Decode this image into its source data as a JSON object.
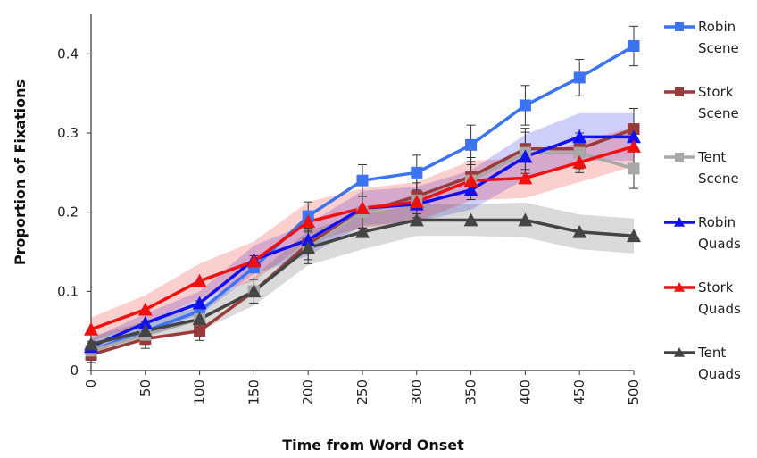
{
  "chart_data": {
    "type": "line",
    "title": "",
    "xlabel": "Time from Word Onset",
    "ylabel": "Proportion of Fixations",
    "x": [
      0,
      50,
      100,
      150,
      200,
      250,
      300,
      350,
      400,
      450,
      500
    ],
    "x_tick_labels": [
      "0",
      "50",
      "100",
      "150",
      "200",
      "250",
      "300",
      "350",
      "400",
      "450",
      "500"
    ],
    "y_ticks": [
      0,
      0.1,
      0.2,
      0.3,
      0.4
    ],
    "y_tick_labels": [
      "0",
      "0.1",
      "0.2",
      "0.3",
      "0.4"
    ],
    "ylim": [
      0,
      0.45
    ],
    "xlim": [
      0,
      500
    ],
    "grid": false,
    "legend_position": "right",
    "series": [
      {
        "name_lines": [
          "Robin",
          "Scene"
        ],
        "color": "#3b73f0",
        "marker": "square",
        "values": [
          0.025,
          0.05,
          0.075,
          0.13,
          0.195,
          0.24,
          0.25,
          0.285,
          0.335,
          0.37,
          0.41
        ],
        "error": [
          0.012,
          0.012,
          0.013,
          0.015,
          0.018,
          0.02,
          0.022,
          0.025,
          0.025,
          0.023,
          0.025
        ]
      },
      {
        "name_lines": [
          "Stork",
          "Scene"
        ],
        "color": "#9a3b3b",
        "marker": "square",
        "values": [
          0.02,
          0.04,
          0.05,
          0.1,
          0.16,
          0.2,
          0.22,
          0.245,
          0.28,
          0.28,
          0.305
        ],
        "error": [
          0.01,
          0.012,
          0.012,
          0.015,
          0.02,
          0.02,
          0.022,
          0.024,
          0.026,
          0.025,
          0.026
        ]
      },
      {
        "name_lines": [
          "Tent",
          "Scene"
        ],
        "color": "#a8a8a8",
        "marker": "square",
        "values": [
          0.025,
          0.045,
          0.065,
          0.1,
          0.155,
          0.2,
          0.215,
          0.24,
          0.275,
          0.275,
          0.255
        ],
        "error": [
          0.01,
          0.012,
          0.012,
          0.015,
          0.02,
          0.02,
          0.022,
          0.024,
          0.026,
          0.025,
          0.025
        ]
      },
      {
        "name_lines": [
          "Robin",
          "Quads"
        ],
        "color": "#1010f0",
        "marker": "triangle",
        "values": [
          0.03,
          0.06,
          0.085,
          0.14,
          0.165,
          0.205,
          0.21,
          0.228,
          0.27,
          0.295,
          0.295
        ],
        "band": [
          0.01,
          0.012,
          0.015,
          0.018,
          0.02,
          0.022,
          0.022,
          0.025,
          0.028,
          0.03,
          0.03
        ]
      },
      {
        "name_lines": [
          "Stork",
          "Quads"
        ],
        "color": "#f01010",
        "marker": "triangle",
        "values": [
          0.052,
          0.077,
          0.113,
          0.138,
          0.188,
          0.205,
          0.213,
          0.24,
          0.243,
          0.263,
          0.283
        ],
        "band": [
          0.015,
          0.018,
          0.022,
          0.025,
          0.025,
          0.025,
          0.025,
          0.025,
          0.025,
          0.025,
          0.025
        ]
      },
      {
        "name_lines": [
          "Tent",
          "Quads"
        ],
        "color": "#444444",
        "marker": "triangle",
        "values": [
          0.033,
          0.05,
          0.065,
          0.1,
          0.155,
          0.175,
          0.19,
          0.19,
          0.19,
          0.175,
          0.17
        ],
        "band": [
          0.01,
          0.012,
          0.015,
          0.018,
          0.022,
          0.022,
          0.02,
          0.02,
          0.022,
          0.022,
          0.022
        ]
      }
    ]
  }
}
